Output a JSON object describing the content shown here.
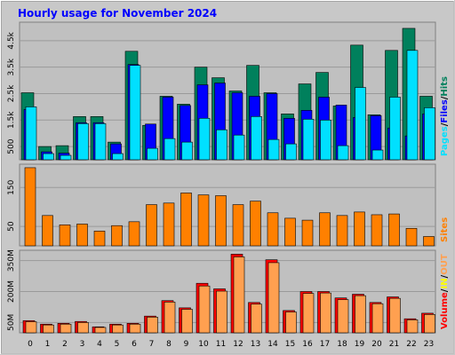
{
  "chart_data": {
    "type": "bar",
    "title": "Hourly usage for November 2024",
    "categories": [
      "0",
      "1",
      "2",
      "3",
      "4",
      "5",
      "6",
      "7",
      "8",
      "9",
      "10",
      "11",
      "12",
      "13",
      "14",
      "15",
      "16",
      "17",
      "18",
      "19",
      "20",
      "21",
      "22",
      "23"
    ],
    "legend_separator": "/",
    "panels": [
      {
        "ylim": [
          0,
          5200
        ],
        "yticks": [
          500,
          {
            "value": 1500,
            "label": "1.5k"
          },
          {
            "value": 2500,
            "label": "2.5k"
          },
          {
            "value": 3500,
            "label": "3.5k"
          },
          {
            "value": 4500,
            "label": "4.5k"
          }
        ],
        "series": [
          {
            "name": "Pages",
            "color": "#00e0ff",
            "values": [
              2000,
              233,
              167,
              1367,
              1367,
              233,
              3567,
              433,
              800,
              667,
              1567,
              1133,
              933,
              1633,
              767,
              600,
              1533,
              1500,
              533,
              2733,
              367,
              2367,
              4133,
              1967
            ]
          },
          {
            "name": "Files",
            "color": "#0000ff",
            "values": [
              1900,
              300,
              250,
              1400,
              1400,
              600,
              3600,
              1350,
              2367,
              2050,
              2833,
              2900,
              2533,
              2400,
              2500,
              1567,
              1867,
              2367,
              2067,
              1600,
              1667,
              1200,
              900,
              1733
            ]
          },
          {
            "name": "Hits",
            "color": "#00805c",
            "values": [
              2533,
              500,
              533,
              1633,
              1633,
              667,
              4100,
              1300,
              2400,
              2100,
              3500,
              3100,
              2600,
              3567,
              2533,
              1733,
              2867,
              3300,
              2033,
              4333,
              1700,
              4133,
              4967,
              2400
            ]
          }
        ]
      },
      {
        "ylim": [
          0,
          210
        ],
        "yticks": [
          50,
          150
        ],
        "series": [
          {
            "name": "Sites",
            "color": "#ff8000",
            "values": [
              201,
              78,
              54,
              56,
              38,
              52,
              62,
              106,
              110,
              136,
              131,
              129,
              106,
              115,
              85,
              71,
              66,
              85,
              78,
              87,
              80,
              82,
              45,
              24
            ]
          }
        ]
      },
      {
        "ylim": [
          0,
          400
        ],
        "yticks": [
          {
            "value": 50,
            "label": "50M"
          },
          {
            "value": 200,
            "label": "200M"
          },
          {
            "value": 350,
            "label": "350M"
          }
        ],
        "series": [
          {
            "name": "Volume",
            "color": "#ff0000",
            "values": [
              59,
              42,
              46,
              55,
              29,
              42,
              46,
              81,
              156,
              121,
              240,
              213,
              381,
              147,
              354,
              108,
              200,
              200,
              169,
              187,
              147,
              174,
              68,
              95
            ]
          },
          {
            "name": "IN",
            "color": "#ffff00"
          },
          {
            "name": "OUT",
            "color": "#ffa050",
            "values": [
              54,
              38,
              42,
              50,
              26,
              38,
              42,
              76,
              149,
              114,
              227,
              202,
              368,
              139,
              340,
              101,
              191,
              193,
              161,
              180,
              141,
              167,
              63,
              89
            ]
          }
        ]
      }
    ]
  }
}
